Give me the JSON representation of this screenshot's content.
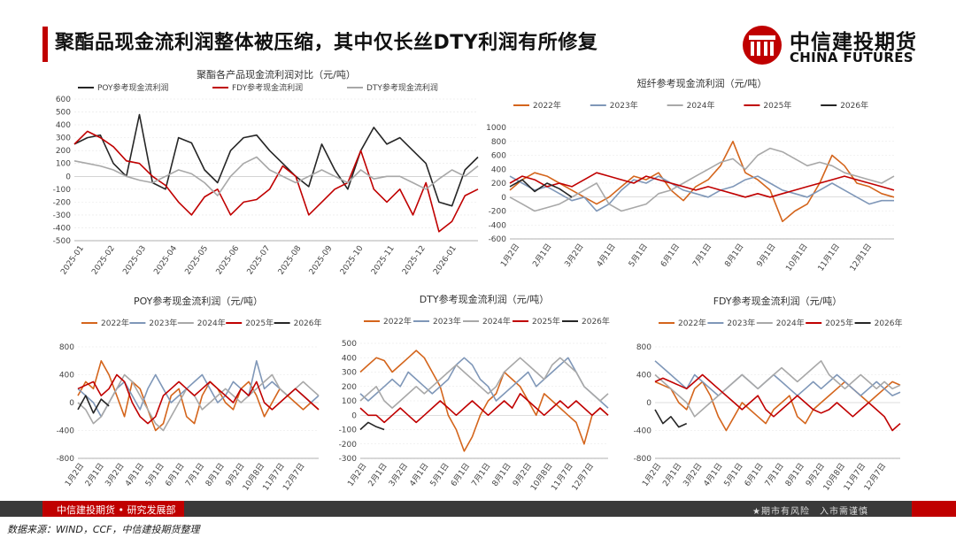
{
  "page": {
    "title": "聚酯品现金流利润整体被压缩，其中仅长丝DTY利润有所修复",
    "logo_cn": "中信建投期货",
    "logo_en": "CHINA FUTURES",
    "footer_left": "中信建投期货 • 研究发展部",
    "footer_right": "★期市有风险　入市需谨慎",
    "source": "数据来源：WIND，CCF，中信建投期货整理"
  },
  "colors": {
    "accent": "#c00000",
    "y2022": "#d4651c",
    "y2023": "#7f97b8",
    "y2024": "#a8a8a8",
    "y2025": "#c00000",
    "y2026": "#262626",
    "poy": "#262626",
    "fdy": "#c00000",
    "dty": "#a8a8a8"
  },
  "chart_data": [
    {
      "id": "main",
      "type": "line",
      "title": "聚酯各产品现金流利润对比（元/吨）",
      "x_tick_labels": [
        "2025-01",
        "2025-02",
        "2025-03",
        "2025-04",
        "2025-05",
        "2025-06",
        "2025-07",
        "2025-08",
        "2025-09",
        "2025-10",
        "2025-11",
        "2025-12",
        "2026-01"
      ],
      "ylim": [
        -500,
        600
      ],
      "y_ticks": [
        600,
        500,
        400,
        300,
        200,
        100,
        0,
        -100,
        -200,
        -300,
        -400,
        -500
      ],
      "series": [
        {
          "name": "POY参考现金流利润",
          "color": "#262626",
          "values": [
            250,
            300,
            320,
            100,
            0,
            480,
            -50,
            -100,
            300,
            260,
            50,
            -50,
            200,
            300,
            320,
            200,
            100,
            0,
            -80,
            250,
            50,
            -100,
            200,
            380,
            250,
            300,
            200,
            100,
            -200,
            -230,
            50,
            150
          ]
        },
        {
          "name": "FDY参考现金流利润",
          "color": "#c00000",
          "values": [
            250,
            350,
            300,
            230,
            120,
            100,
            0,
            -70,
            -200,
            -300,
            -160,
            -100,
            -300,
            -200,
            -180,
            -100,
            80,
            0,
            -300,
            -200,
            -100,
            -50,
            200,
            -100,
            -200,
            -100,
            -300,
            -50,
            -430,
            -350,
            -150,
            -100
          ]
        },
        {
          "name": "DTY参考现金流利润",
          "color": "#a8a8a8",
          "values": [
            120,
            100,
            80,
            50,
            0,
            -30,
            -50,
            0,
            50,
            20,
            -50,
            -150,
            0,
            100,
            150,
            50,
            0,
            -50,
            0,
            50,
            0,
            -50,
            50,
            -20,
            0,
            0,
            -50,
            -100,
            -20,
            50,
            0,
            80
          ]
        }
      ]
    },
    {
      "id": "staple",
      "type": "line",
      "title": "短纤参考现金流利润（元/吨）",
      "x_tick_labels": [
        "1月2日",
        "2月1日",
        "3月2日",
        "4月1日",
        "5月1日",
        "6月1日",
        "7月1日",
        "8月1日",
        "9月1日",
        "10月1日",
        "11月1日",
        "12月1日"
      ],
      "ylim": [
        -600,
        1000
      ],
      "y_ticks": [
        1000,
        800,
        600,
        400,
        200,
        0,
        -200,
        -400,
        -600
      ],
      "series": [
        {
          "name": "2022年",
          "color": "#d4651c",
          "values": [
            100,
            250,
            350,
            300,
            200,
            100,
            0,
            -100,
            0,
            150,
            300,
            250,
            350,
            100,
            -50,
            150,
            250,
            450,
            800,
            350,
            250,
            100,
            -350,
            -200,
            -100,
            200,
            600,
            450,
            200,
            150,
            50,
            0
          ]
        },
        {
          "name": "2023年",
          "color": "#7f97b8",
          "values": [
            300,
            200,
            100,
            150,
            50,
            -50,
            0,
            -200,
            -100,
            100,
            250,
            200,
            300,
            200,
            100,
            50,
            0,
            100,
            150,
            250,
            300,
            200,
            100,
            50,
            0,
            100,
            200,
            100,
            0,
            -100,
            -50,
            -50
          ]
        },
        {
          "name": "2024年",
          "color": "#a8a8a8",
          "values": [
            0,
            -100,
            -200,
            -150,
            -100,
            0,
            100,
            200,
            -100,
            -200,
            -150,
            -100,
            50,
            100,
            200,
            300,
            400,
            500,
            550,
            400,
            600,
            700,
            650,
            550,
            450,
            500,
            450,
            350,
            300,
            250,
            200,
            300
          ]
        },
        {
          "name": "2025年",
          "color": "#c00000",
          "values": [
            200,
            300,
            250,
            150,
            200,
            150,
            250,
            350,
            300,
            250,
            200,
            300,
            250,
            200,
            150,
            100,
            150,
            100,
            50,
            0,
            50,
            0,
            50,
            100,
            150,
            200,
            250,
            300,
            250,
            200,
            150,
            100
          ]
        },
        {
          "name": "2026年",
          "color": "#262626",
          "values": [
            150,
            250,
            80,
            200,
            120,
            0
          ]
        }
      ]
    },
    {
      "id": "poy",
      "type": "line",
      "title": "POY参考现金流利润（元/吨）",
      "x_tick_labels": [
        "1月2日",
        "2月1日",
        "3月2日",
        "4月1日",
        "5月1日",
        "6月1日",
        "7月1日",
        "8月1日",
        "9月2日",
        "10月8日",
        "11月7日",
        "12月7日"
      ],
      "ylim": [
        -800,
        800
      ],
      "y_ticks": [
        800,
        400,
        0,
        -400,
        -800
      ],
      "series": [
        {
          "name": "2022年",
          "color": "#d4651c",
          "values": [
            100,
            300,
            200,
            600,
            400,
            100,
            -200,
            300,
            200,
            -100,
            -400,
            -300,
            100,
            200,
            -200,
            -300,
            100,
            300,
            200,
            0,
            -100,
            200,
            300,
            100,
            -200,
            0,
            200,
            100,
            0,
            -100,
            0,
            -100
          ]
        },
        {
          "name": "2023年",
          "color": "#7f97b8",
          "values": [
            200,
            100,
            0,
            -200,
            0,
            200,
            300,
            100,
            -100,
            200,
            400,
            200,
            0,
            100,
            200,
            300,
            400,
            200,
            0,
            100,
            300,
            200,
            100,
            600,
            200,
            300,
            200,
            100,
            200,
            100,
            0,
            100
          ]
        },
        {
          "name": "2024年",
          "color": "#a8a8a8",
          "values": [
            0,
            -100,
            -300,
            -200,
            0,
            200,
            400,
            300,
            100,
            -100,
            -300,
            -400,
            -200,
            0,
            200,
            100,
            -100,
            0,
            100,
            200,
            100,
            0,
            100,
            200,
            300,
            400,
            200,
            100,
            200,
            300,
            200,
            100
          ]
        },
        {
          "name": "2025年",
          "color": "#c00000",
          "values": [
            200,
            250,
            300,
            100,
            200,
            400,
            300,
            0,
            -200,
            -300,
            -200,
            100,
            200,
            300,
            200,
            100,
            200,
            300,
            200,
            100,
            0,
            200,
            100,
            300,
            0,
            -100,
            0,
            100,
            200,
            100,
            0,
            -100
          ]
        },
        {
          "name": "2026年",
          "color": "#262626",
          "values": [
            -100,
            100,
            -150,
            50,
            -50
          ]
        }
      ]
    },
    {
      "id": "dty",
      "type": "line",
      "title": "DTY参考现金流利润（元/吨）",
      "x_tick_labels": [
        "1月2日",
        "2月1日",
        "3月2日",
        "4月1日",
        "5月1日",
        "6月1日",
        "7月1日",
        "8月1日",
        "9月2日",
        "10月8日",
        "11月7日",
        "12月7日"
      ],
      "ylim": [
        -300,
        500
      ],
      "y_ticks": [
        500,
        400,
        300,
        200,
        100,
        0,
        -100,
        -200,
        -300
      ],
      "series": [
        {
          "name": "2022年",
          "color": "#d4651c",
          "values": [
            300,
            350,
            400,
            380,
            300,
            350,
            400,
            450,
            400,
            300,
            200,
            0,
            -100,
            -250,
            -150,
            0,
            100,
            150,
            300,
            250,
            200,
            100,
            0,
            150,
            100,
            50,
            0,
            -50,
            -200,
            0,
            50,
            0
          ]
        },
        {
          "name": "2023年",
          "color": "#7f97b8",
          "values": [
            150,
            100,
            150,
            200,
            250,
            200,
            300,
            250,
            200,
            150,
            200,
            250,
            350,
            400,
            350,
            250,
            200,
            100,
            150,
            200,
            250,
            300,
            200,
            250,
            300,
            350,
            400,
            300,
            200,
            150,
            100,
            50
          ]
        },
        {
          "name": "2024年",
          "color": "#a8a8a8",
          "values": [
            100,
            150,
            200,
            100,
            50,
            100,
            150,
            200,
            150,
            200,
            250,
            300,
            350,
            300,
            250,
            200,
            150,
            200,
            300,
            350,
            400,
            350,
            300,
            250,
            350,
            400,
            350,
            300,
            200,
            150,
            100,
            150
          ]
        },
        {
          "name": "2025年",
          "color": "#c00000",
          "values": [
            50,
            0,
            0,
            -50,
            0,
            50,
            0,
            -50,
            0,
            50,
            100,
            50,
            0,
            50,
            100,
            50,
            0,
            50,
            100,
            50,
            150,
            100,
            50,
            0,
            50,
            100,
            50,
            100,
            50,
            0,
            50,
            0
          ]
        },
        {
          "name": "2026年",
          "color": "#262626",
          "values": [
            -100,
            -50,
            -80,
            -100
          ]
        }
      ]
    },
    {
      "id": "fdy",
      "type": "line",
      "title": "FDY参考现金流利润（元/吨）",
      "x_tick_labels": [
        "1月2日",
        "2月1日",
        "3月2日",
        "4月1日",
        "5月1日",
        "6月1日",
        "7月1日",
        "8月1日",
        "9月2日",
        "10月8日",
        "11月7日",
        "12月7日"
      ],
      "ylim": [
        -800,
        800
      ],
      "y_ticks": [
        800,
        400,
        0,
        -400,
        -800
      ],
      "series": [
        {
          "name": "2022年",
          "color": "#d4651c",
          "values": [
            300,
            250,
            200,
            0,
            -100,
            200,
            300,
            100,
            -200,
            -400,
            -200,
            0,
            -100,
            -200,
            -300,
            -100,
            0,
            100,
            -200,
            -300,
            -100,
            0,
            100,
            200,
            300,
            200,
            100,
            0,
            100,
            200,
            300,
            250
          ]
        },
        {
          "name": "2023年",
          "color": "#7f97b8",
          "values": [
            600,
            500,
            400,
            300,
            200,
            400,
            300,
            200,
            100,
            200,
            300,
            400,
            300,
            200,
            300,
            400,
            300,
            200,
            100,
            200,
            300,
            200,
            300,
            400,
            300,
            200,
            100,
            200,
            300,
            200,
            100,
            150
          ]
        },
        {
          "name": "2024年",
          "color": "#a8a8a8",
          "values": [
            400,
            300,
            200,
            100,
            0,
            -200,
            -100,
            0,
            100,
            200,
            300,
            400,
            300,
            200,
            300,
            400,
            500,
            400,
            300,
            400,
            500,
            600,
            400,
            300,
            200,
            300,
            400,
            300,
            200,
            300,
            200,
            250
          ]
        },
        {
          "name": "2025年",
          "color": "#c00000",
          "values": [
            300,
            350,
            300,
            250,
            200,
            300,
            400,
            300,
            200,
            100,
            0,
            -100,
            0,
            100,
            -100,
            -200,
            -100,
            0,
            100,
            0,
            -100,
            -150,
            -100,
            0,
            -100,
            -200,
            -100,
            0,
            -100,
            -200,
            -400,
            -300
          ]
        },
        {
          "name": "2026年",
          "color": "#262626",
          "values": [
            -100,
            -300,
            -200,
            -350,
            -300
          ]
        }
      ]
    }
  ]
}
